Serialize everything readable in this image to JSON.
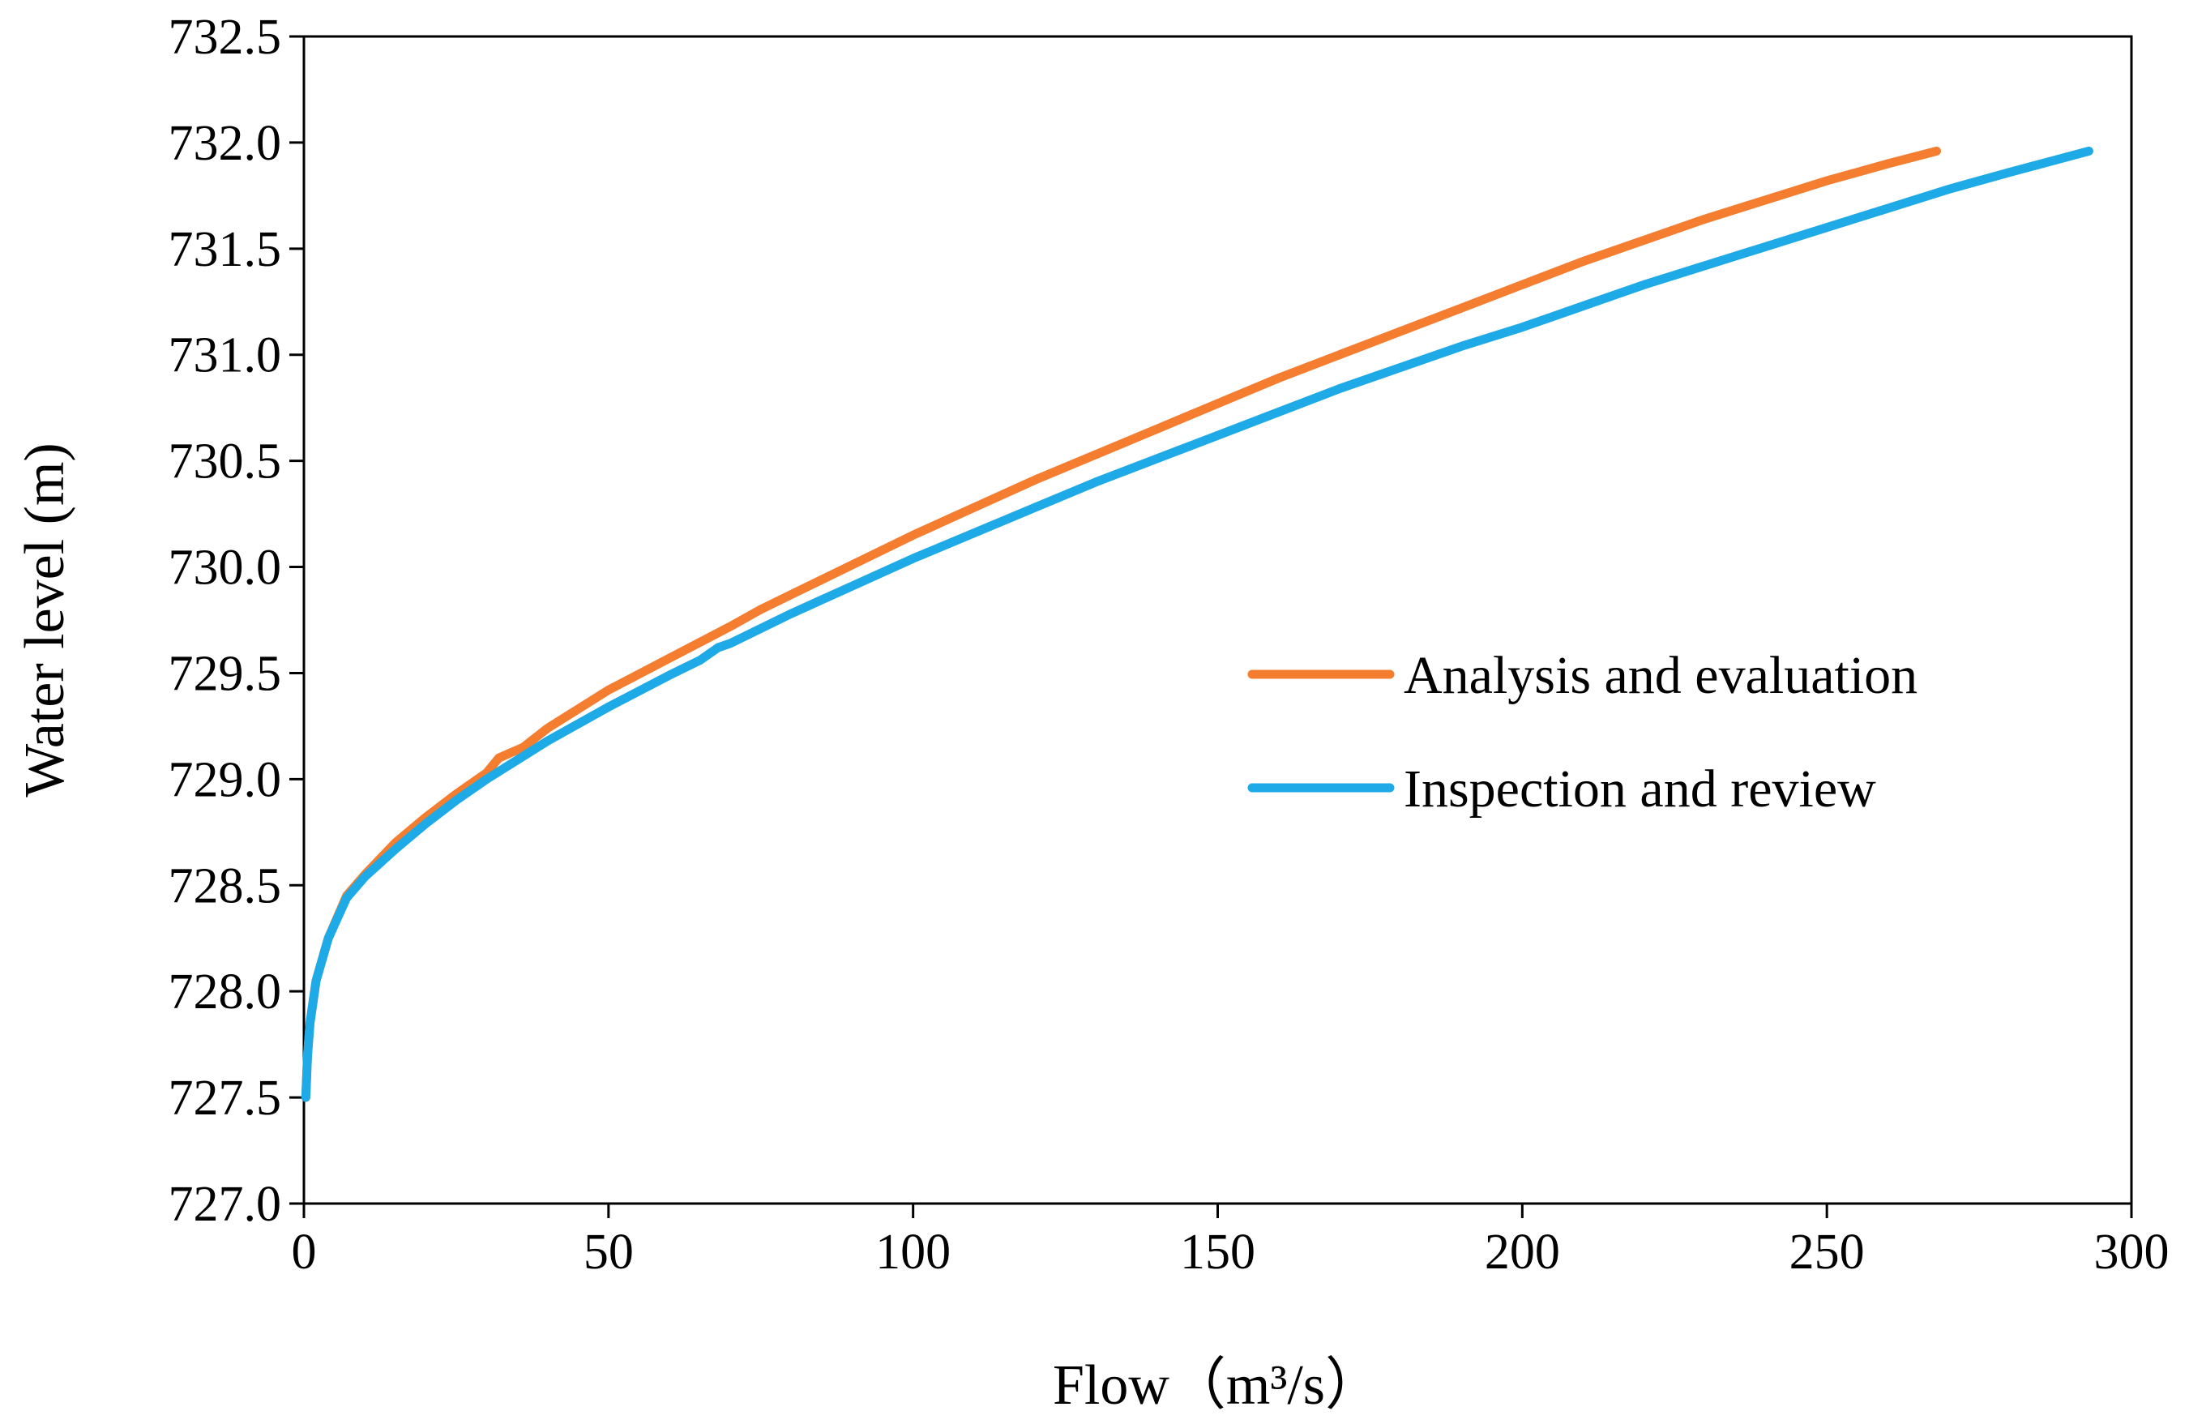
{
  "chart_data": {
    "type": "line",
    "title": "",
    "xlabel": "Flow（m³/s）",
    "ylabel": "Water level (m)",
    "xlim": [
      0,
      300
    ],
    "ylim": [
      727.0,
      732.5
    ],
    "xticks": [
      "0",
      "50",
      "100",
      "150",
      "200",
      "250",
      "300"
    ],
    "yticks": [
      "727.0",
      "727.5",
      "728.0",
      "728.5",
      "729.0",
      "729.5",
      "730.0",
      "730.5",
      "731.0",
      "731.5",
      "732.0",
      "732.5"
    ],
    "grid": false,
    "legend_position": "right-middle",
    "series": [
      {
        "name": "Analysis and evaluation",
        "color": "#F47D30",
        "x": [
          0.3,
          0.6,
          1,
          2,
          4,
          7,
          10,
          15,
          20,
          25,
          30,
          32,
          36,
          40,
          50,
          60,
          70,
          75,
          80,
          90,
          100,
          110,
          120,
          130,
          140,
          150,
          160,
          170,
          180,
          190,
          200,
          210,
          220,
          230,
          240,
          250,
          260,
          268
        ],
        "y": [
          727.5,
          727.7,
          727.85,
          728.05,
          728.25,
          728.45,
          728.55,
          728.7,
          728.82,
          728.93,
          729.03,
          729.1,
          729.15,
          729.24,
          729.42,
          729.57,
          729.72,
          729.8,
          729.87,
          730.01,
          730.15,
          730.28,
          730.41,
          730.53,
          730.65,
          730.77,
          730.89,
          731.0,
          731.11,
          731.22,
          731.33,
          731.44,
          731.54,
          731.64,
          731.73,
          731.82,
          731.9,
          731.96
        ]
      },
      {
        "name": "Inspection and review",
        "color": "#1EAAE6",
        "x": [
          0.3,
          0.6,
          1,
          2,
          4,
          7,
          10,
          15,
          20,
          25,
          30,
          35,
          40,
          50,
          60,
          65,
          68,
          70,
          80,
          90,
          100,
          110,
          120,
          130,
          140,
          150,
          160,
          170,
          180,
          190,
          200,
          210,
          220,
          230,
          240,
          250,
          260,
          270,
          280,
          293
        ],
        "y": [
          727.5,
          727.7,
          727.85,
          728.05,
          728.25,
          728.44,
          728.54,
          728.67,
          728.79,
          728.9,
          729.0,
          729.09,
          729.18,
          729.34,
          729.49,
          729.56,
          729.62,
          729.64,
          729.78,
          729.91,
          730.04,
          730.16,
          730.28,
          730.4,
          730.51,
          730.62,
          730.73,
          730.84,
          730.94,
          731.04,
          731.13,
          731.23,
          731.33,
          731.42,
          731.51,
          731.6,
          731.69,
          731.78,
          731.86,
          731.96
        ]
      }
    ]
  }
}
